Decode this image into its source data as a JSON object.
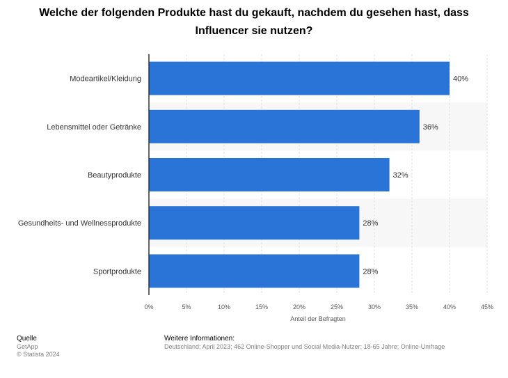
{
  "title": "Welche der folgenden Produkte hast du gekauft, nachdem du gesehen hast, dass Influencer sie nutzen?",
  "colors": {
    "bar": "#2a74d8",
    "band": "#f7f7f7",
    "grid": "#e0e0e0",
    "axis": "#333333"
  },
  "chart_data": {
    "type": "bar",
    "orientation": "horizontal",
    "categories": [
      "Modeartikel/Kleidung",
      "Lebensmittel oder Getränke",
      "Beautyprodukte",
      "Gesundheits- und Wellnessprodukte",
      "Sportprodukte"
    ],
    "values": [
      40,
      36,
      32,
      28,
      28
    ],
    "value_labels": [
      "40%",
      "36%",
      "32%",
      "28%",
      "28%"
    ],
    "xlabel": "Anteil der Befragten",
    "xlim": [
      0,
      45
    ],
    "ticks": [
      0,
      5,
      10,
      15,
      20,
      25,
      30,
      35,
      40,
      45
    ],
    "tick_labels": [
      "0%",
      "5%",
      "10%",
      "15%",
      "20%",
      "25%",
      "30%",
      "35%",
      "40%",
      "45%"
    ],
    "grid": true,
    "legend": "none"
  },
  "footer": {
    "source_heading": "Quelle",
    "source_name": "GetApp",
    "copyright": "© Statista 2024",
    "info_heading": "Weitere Informationen:",
    "info_text": "Deutschland; April 2023; 462 Online-Shopper und Social Media-Nutzer; 18-65 Jahre; Online-Umfrage"
  }
}
